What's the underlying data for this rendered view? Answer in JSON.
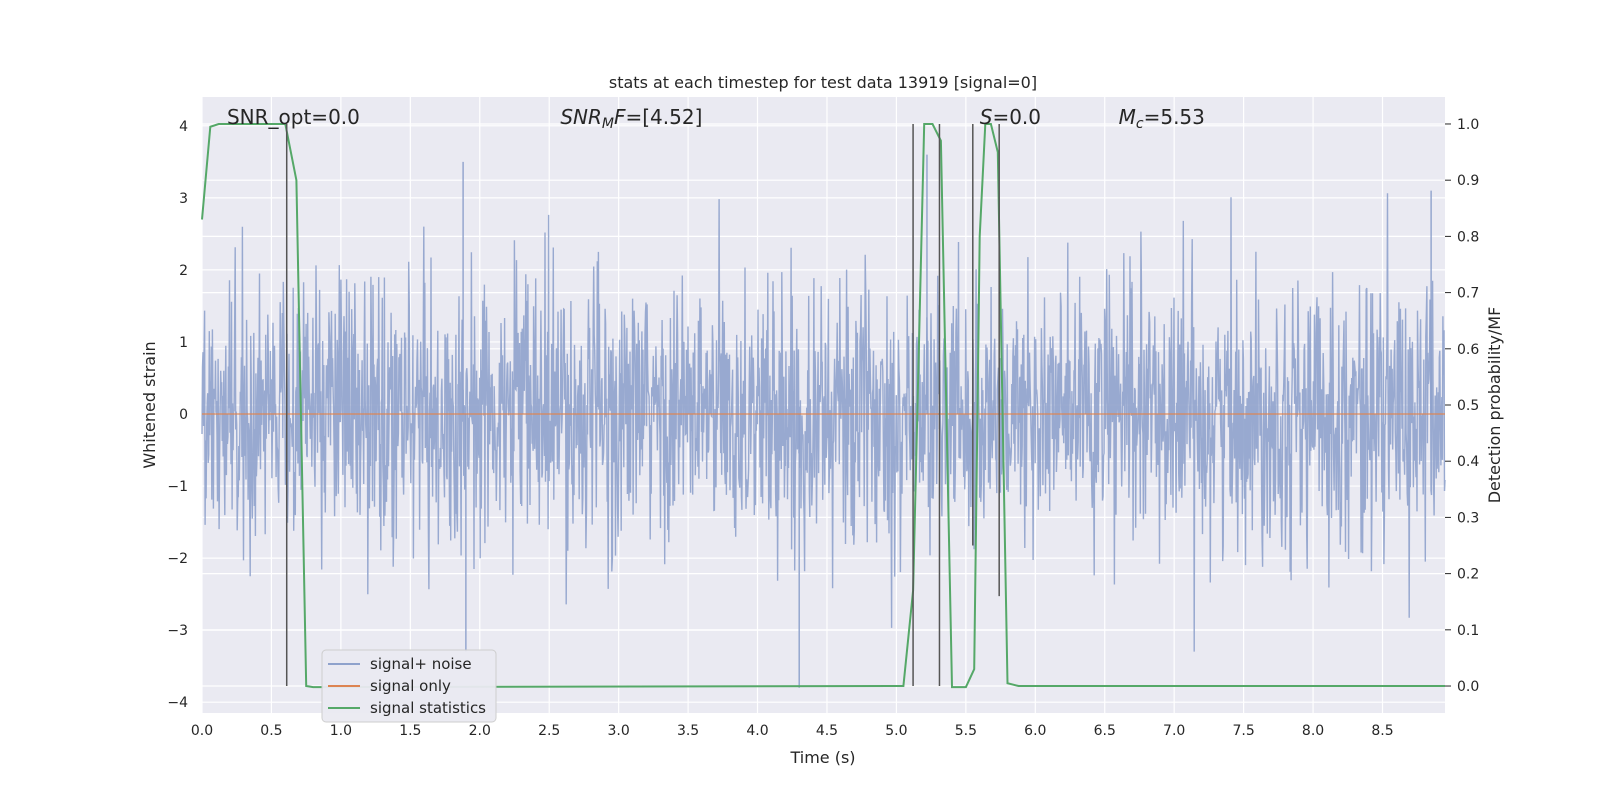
{
  "chart_data": {
    "type": "line",
    "title": "stats at each timestep for test data 13919 [signal=0]",
    "xlabel": "Time (s)",
    "ylabel": "Whitened strain",
    "y2label": "Detection probability/MF",
    "xlim": [
      0.0,
      8.95
    ],
    "ylim": [
      -4.15,
      4.4
    ],
    "y2lim": [
      -0.048,
      1.048
    ],
    "x_ticks": [
      "0.0",
      "0.5",
      "1.0",
      "1.5",
      "2.0",
      "2.5",
      "3.0",
      "3.5",
      "4.0",
      "4.5",
      "5.0",
      "5.5",
      "6.0",
      "6.5",
      "7.0",
      "7.5",
      "8.0",
      "8.5"
    ],
    "y_ticks": [
      "4",
      "3",
      "2",
      "1",
      "0",
      "−1",
      "−2",
      "−3",
      "−4"
    ],
    "y2_ticks": [
      "1.0",
      "0.9",
      "0.8",
      "0.7",
      "0.6",
      "0.5",
      "0.4",
      "0.3",
      "0.2",
      "0.1",
      "0.0"
    ],
    "grid": true,
    "legend_position": "lower-left",
    "legend": [
      "signal+ noise",
      "signal only",
      "signal statistics"
    ],
    "annotations": [
      {
        "prefix": "SNR_opt=0.0",
        "sub": "",
        "suffix": "",
        "x": 0.18
      },
      {
        "prefix": "SNR",
        "sub": "M",
        "suffix": "F=[4.52]",
        "x": 2.58
      },
      {
        "prefix": "S",
        "sub": "",
        "suffix": "=0.0",
        "x": 5.6
      },
      {
        "prefix": "M",
        "sub": "c",
        "suffix": "=5.53",
        "x": 6.6
      }
    ],
    "series": [
      {
        "name": "signal+ noise",
        "color": "#8fa2cc",
        "description": "dense noise trace",
        "t_range": [
          0.0,
          8.95
        ],
        "amplitude_sigma": 0.9,
        "peaks": [
          {
            "x": 1.88,
            "y": 3.5
          },
          {
            "x": 5.22,
            "y": 3.6
          },
          {
            "x": 4.3,
            "y": -3.8
          },
          {
            "x": 1.9,
            "y": -3.3
          },
          {
            "x": 8.85,
            "y": 3.1
          }
        ]
      },
      {
        "name": "signal only",
        "color": "#dd8452",
        "x": [
          0.0,
          8.95
        ],
        "y": [
          0.0,
          0.0
        ]
      },
      {
        "name": "signal statistics",
        "color": "#55a868",
        "axis": "right",
        "x": [
          0.0,
          0.06,
          0.12,
          0.6,
          0.68,
          0.75,
          0.8,
          5.05,
          5.12,
          5.2,
          5.26,
          5.32,
          5.4,
          5.5,
          5.56,
          5.6,
          5.64,
          5.68,
          5.73,
          5.8,
          5.88,
          8.95
        ],
        "y": [
          0.83,
          0.995,
          1.0,
          1.0,
          0.9,
          0.0,
          -0.002,
          0.0,
          0.17,
          1.0,
          1.0,
          0.97,
          -0.002,
          -0.002,
          0.03,
          0.8,
          1.0,
          1.0,
          0.95,
          0.005,
          0.0,
          0.0
        ]
      }
    ],
    "vlines": [
      {
        "x": 0.61,
        "y2": [
          0.0,
          1.0
        ]
      },
      {
        "x": 5.12,
        "y2": [
          0.0,
          1.0
        ]
      },
      {
        "x": 5.31,
        "y2": [
          0.0,
          1.0
        ]
      },
      {
        "x": 5.55,
        "y2": [
          0.25,
          1.0
        ]
      },
      {
        "x": 5.74,
        "y2": [
          0.16,
          1.0
        ]
      }
    ]
  }
}
